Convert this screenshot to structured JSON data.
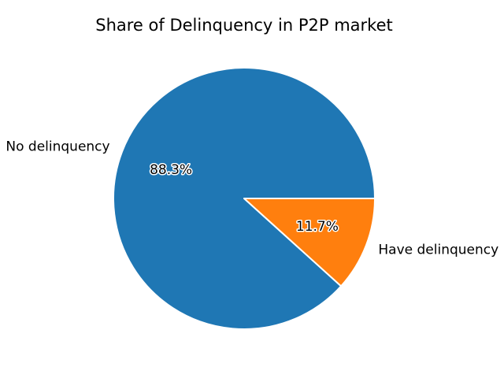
{
  "chart_data": {
    "type": "pie",
    "title": "Share of Delinquency in P2P market",
    "categories": [
      "No delinquency",
      "Have delinquency"
    ],
    "values": [
      88.3,
      11.7
    ],
    "percent_labels": [
      "88.3%",
      "11.7%"
    ],
    "colors": [
      "#1f77b4",
      "#ff7f0e"
    ],
    "legend": "none"
  }
}
